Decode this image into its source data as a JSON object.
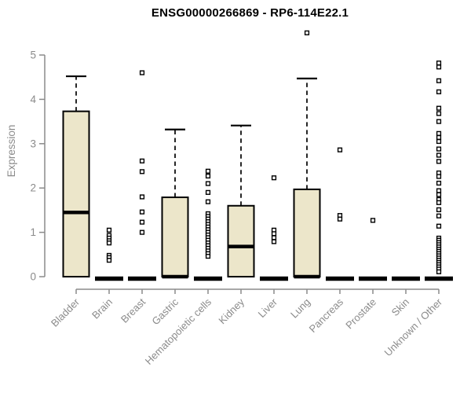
{
  "chart_data": {
    "type": "boxplot",
    "title": "ENSG00000266869 - RP6-114E22.1",
    "ylabel": "Expression",
    "ylim": [
      0,
      5
    ],
    "yticks": [
      0,
      1,
      2,
      3,
      4,
      5
    ],
    "grid": false,
    "legend": "none",
    "categories": [
      "Bladder",
      "Brain",
      "Breast",
      "Gastric",
      "Hematopoietic cells",
      "Kidney",
      "Liver",
      "Lung",
      "Pancreas",
      "Prostate",
      "Skin",
      "Unknown / Other"
    ],
    "series": [
      {
        "category": "Bladder",
        "whisker_low": 0,
        "q1": 0,
        "median": 1.45,
        "q3": 3.73,
        "whisker_high": 4.52,
        "outliers": []
      },
      {
        "category": "Brain",
        "whisker_low": 0,
        "q1": 0,
        "median": 0,
        "q3": 0,
        "whisker_high": 0,
        "outliers": [
          1.05,
          0.93,
          0.87,
          0.81,
          0.76,
          0.48,
          0.43,
          0.37
        ]
      },
      {
        "category": "Breast",
        "whisker_low": 0,
        "q1": 0,
        "median": 0,
        "q3": 0,
        "whisker_high": 0,
        "outliers": [
          4.6,
          2.61,
          2.37,
          1.8,
          1.46,
          1.23,
          1.0
        ]
      },
      {
        "category": "Gastric",
        "whisker_low": 0,
        "q1": 0,
        "median": 0,
        "q3": 1.79,
        "whisker_high": 3.32,
        "outliers": []
      },
      {
        "category": "Hematopoietic cells",
        "whisker_low": 0,
        "q1": 0,
        "median": 0,
        "q3": 0,
        "whisker_high": 0,
        "outliers": [
          2.38,
          2.27,
          2.1,
          1.9,
          1.69,
          1.42,
          1.36,
          1.3,
          1.24,
          1.18,
          1.12,
          1.06,
          1.0,
          0.94,
          0.88,
          0.82,
          0.76,
          0.7,
          0.64,
          0.58,
          0.52,
          0.46
        ]
      },
      {
        "category": "Kidney",
        "whisker_low": 0,
        "q1": 0,
        "median": 0.68,
        "q3": 1.6,
        "whisker_high": 3.41,
        "outliers": []
      },
      {
        "category": "Liver",
        "whisker_low": 0,
        "q1": 0,
        "median": 0,
        "q3": 0,
        "whisker_high": 0,
        "outliers": [
          2.23,
          1.05,
          0.97,
          0.88,
          0.79
        ]
      },
      {
        "category": "Lung",
        "whisker_low": 0,
        "q1": 0,
        "median": 0,
        "q3": 1.97,
        "whisker_high": 4.47,
        "outliers": [
          5.5
        ]
      },
      {
        "category": "Pancreas",
        "whisker_low": 0,
        "q1": 0,
        "median": 0,
        "q3": 0,
        "whisker_high": 0,
        "outliers": [
          2.86,
          1.38,
          1.3
        ]
      },
      {
        "category": "Prostate",
        "whisker_low": 0,
        "q1": 0,
        "median": 0,
        "q3": 0,
        "whisker_high": 0,
        "outliers": [
          1.27
        ]
      },
      {
        "category": "Skin",
        "whisker_low": 0,
        "q1": 0,
        "median": 0,
        "q3": 0,
        "whisker_high": 0,
        "outliers": []
      },
      {
        "category": "Unknown / Other",
        "whisker_low": 0,
        "q1": 0,
        "median": 0,
        "q3": 0,
        "whisker_high": 0,
        "outliers": [
          4.82,
          4.73,
          4.42,
          4.17,
          3.8,
          3.68,
          3.5,
          3.23,
          3.14,
          3.05,
          2.88,
          2.74,
          2.6,
          2.34,
          2.26,
          2.11,
          1.94,
          1.85,
          1.74,
          1.67,
          1.51,
          1.37,
          1.14,
          0.87,
          0.82,
          0.77,
          0.72,
          0.67,
          0.62,
          0.57,
          0.52,
          0.47,
          0.42,
          0.37,
          0.32,
          0.27,
          0.22,
          0.17,
          0.11
        ]
      }
    ],
    "colors": {
      "box_fill": "#ece6ca",
      "box_stroke": "#000000",
      "median": "#000000",
      "outlier_stroke": "#000000",
      "outlier_fill": "#ffffff",
      "axis": "#8b8b8b",
      "tick_label": "#8b8b8b",
      "title": "#000000",
      "background": "#ffffff"
    }
  }
}
